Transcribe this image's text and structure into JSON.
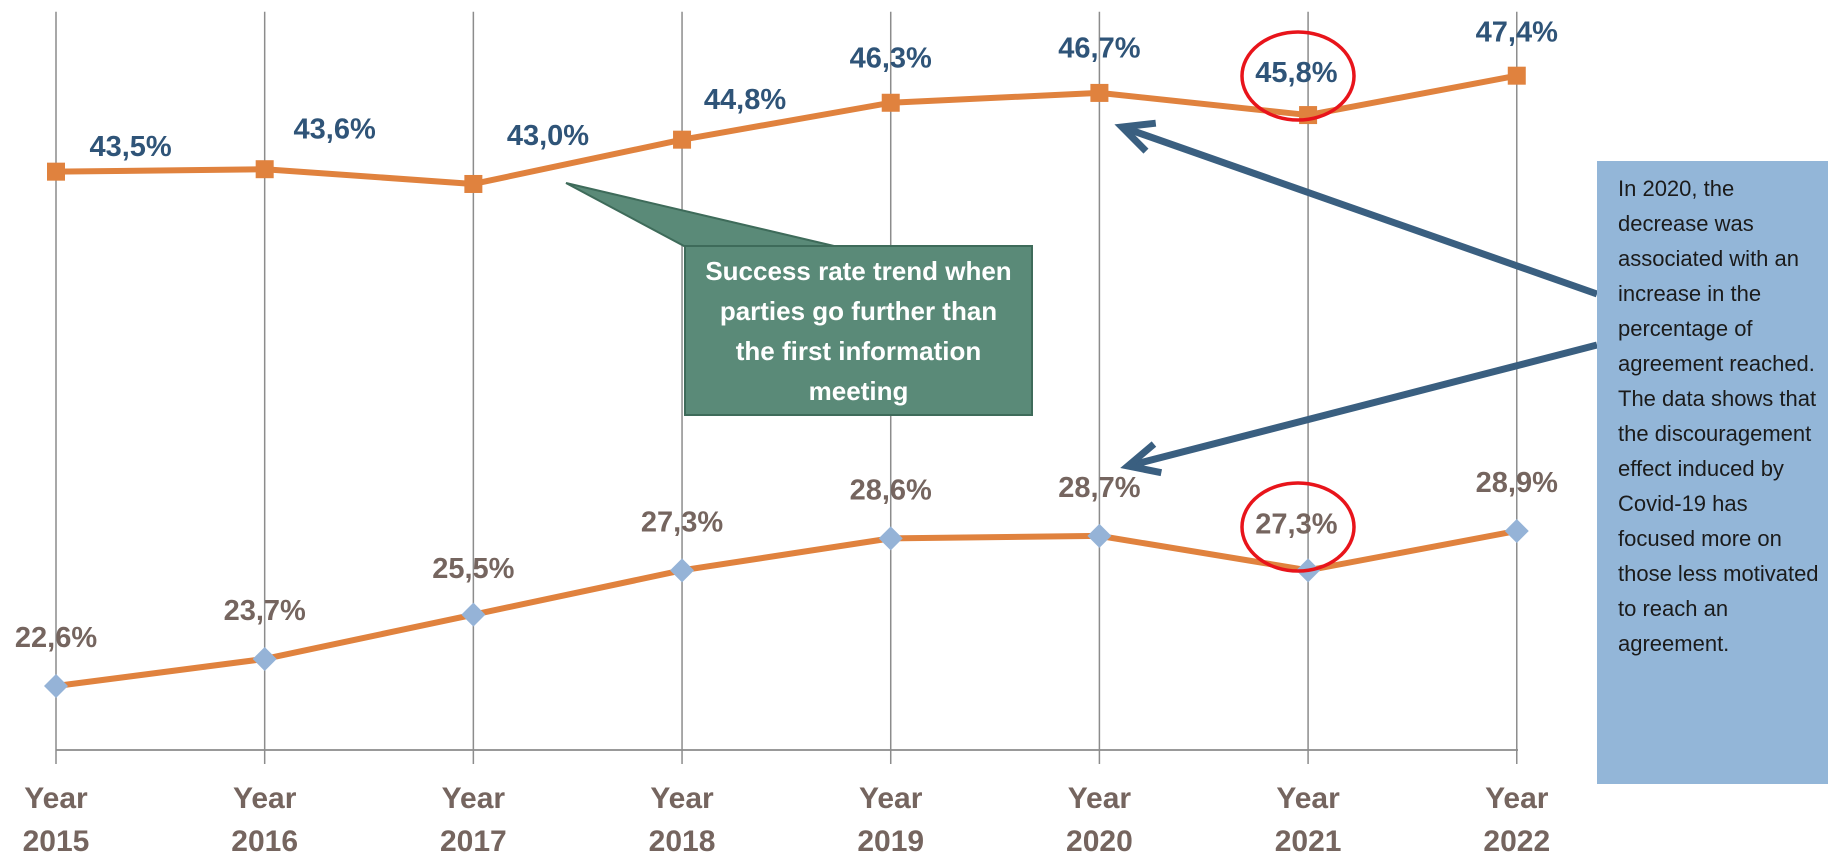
{
  "chart_data": {
    "type": "line",
    "categories": [
      "Year 2015",
      "Year 2016",
      "Year 2017",
      "Year 2018",
      "Year 2019",
      "Year 2020",
      "Year 2021",
      "Year 2022"
    ],
    "series": [
      {
        "color": "#e0823e",
        "marker": "square",
        "marker_color": "#e0823e",
        "label_color": "#2f5478",
        "values": [
          43.5,
          43.6,
          43.0,
          44.8,
          46.3,
          46.7,
          45.8,
          47.4
        ],
        "value_labels": [
          "43,5%",
          "43,6%",
          "43,0%",
          "44,8%",
          "46,3%",
          "46,7%",
          "45,8%",
          "47,4%"
        ]
      },
      {
        "color": "#e0823e",
        "marker": "diamond",
        "marker_color": "#95b3d7",
        "label_color": "#75655f",
        "values": [
          22.6,
          23.7,
          25.5,
          27.3,
          28.6,
          28.7,
          27.3,
          28.9
        ],
        "value_labels": [
          "22,6%",
          "23,7%",
          "25,5%",
          "27,3%",
          "28,6%",
          "28,7%",
          "27,3%",
          "28,9%"
        ]
      }
    ],
    "ylim": [
      20,
      50
    ],
    "xgrid": true,
    "callout": "Success rate trend when parties go further than the first information meeting",
    "side_note": [
      "In 2020, the decrease was associated with an increase in the percentage of agreement reached.",
      "The data shows that the discouragement effect induced by Covid-19 has focused more on those less motivated to reach an agreement."
    ]
  }
}
